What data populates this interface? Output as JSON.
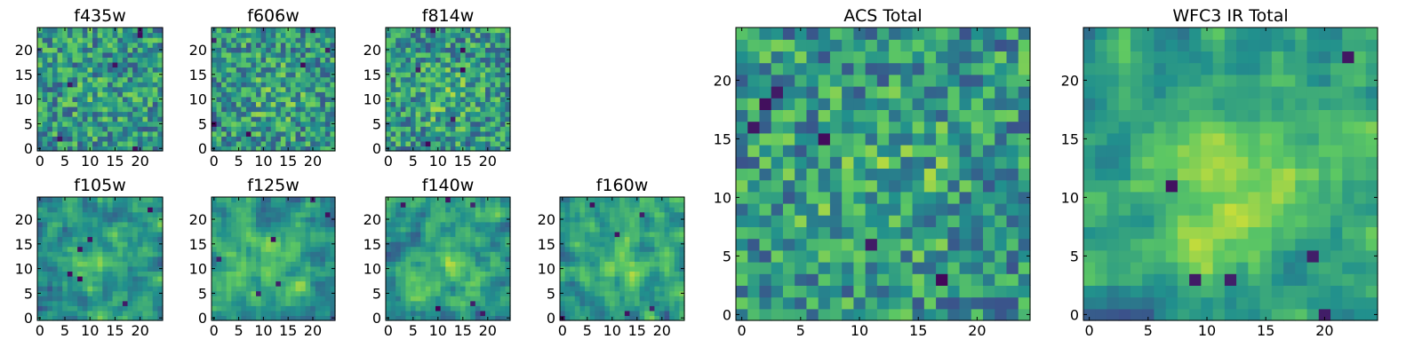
{
  "chart_data": [
    {
      "type": "heatmap",
      "title": "f435w",
      "grid": [
        25,
        25
      ],
      "xlim": [
        0,
        25
      ],
      "ylim": [
        0,
        25
      ],
      "xticks": [
        "0",
        "5",
        "10",
        "15",
        "20"
      ],
      "yticks": [
        "0",
        "5",
        "10",
        "15",
        "20"
      ],
      "colormap": "viridis"
    },
    {
      "type": "heatmap",
      "title": "f606w",
      "grid": [
        25,
        25
      ],
      "xlim": [
        0,
        25
      ],
      "ylim": [
        0,
        25
      ],
      "xticks": [
        "0",
        "5",
        "10",
        "15",
        "20"
      ],
      "yticks": [
        "0",
        "5",
        "10",
        "15",
        "20"
      ],
      "colormap": "viridis"
    },
    {
      "type": "heatmap",
      "title": "f814w",
      "grid": [
        25,
        25
      ],
      "xlim": [
        0,
        25
      ],
      "ylim": [
        0,
        25
      ],
      "xticks": [
        "0",
        "5",
        "10",
        "15",
        "20"
      ],
      "yticks": [
        "0",
        "5",
        "10",
        "15",
        "20"
      ],
      "colormap": "viridis"
    },
    {
      "type": "heatmap",
      "title": "f105w",
      "grid": [
        25,
        25
      ],
      "xlim": [
        0,
        25
      ],
      "ylim": [
        0,
        25
      ],
      "xticks": [
        "0",
        "5",
        "10",
        "15",
        "20"
      ],
      "yticks": [
        "0",
        "5",
        "10",
        "15",
        "20"
      ],
      "colormap": "viridis"
    },
    {
      "type": "heatmap",
      "title": "f125w",
      "grid": [
        25,
        25
      ],
      "xlim": [
        0,
        25
      ],
      "ylim": [
        0,
        25
      ],
      "xticks": [
        "0",
        "5",
        "10",
        "15",
        "20"
      ],
      "yticks": [
        "0",
        "5",
        "10",
        "15",
        "20"
      ],
      "colormap": "viridis"
    },
    {
      "type": "heatmap",
      "title": "f140w",
      "grid": [
        25,
        25
      ],
      "xlim": [
        0,
        25
      ],
      "ylim": [
        0,
        25
      ],
      "xticks": [
        "0",
        "5",
        "10",
        "15",
        "20"
      ],
      "yticks": [
        "0",
        "5",
        "10",
        "15",
        "20"
      ],
      "colormap": "viridis"
    },
    {
      "type": "heatmap",
      "title": "f160w",
      "grid": [
        25,
        25
      ],
      "xlim": [
        0,
        25
      ],
      "ylim": [
        0,
        25
      ],
      "xticks": [
        "0",
        "5",
        "10",
        "15",
        "20"
      ],
      "yticks": [
        "0",
        "5",
        "10",
        "15",
        "20"
      ],
      "colormap": "viridis"
    },
    {
      "type": "heatmap",
      "title": "ACS Total",
      "grid": [
        25,
        25
      ],
      "xlim": [
        0,
        25
      ],
      "ylim": [
        0,
        25
      ],
      "xticks": [
        "0",
        "5",
        "10",
        "15",
        "20"
      ],
      "yticks": [
        "0",
        "5",
        "10",
        "15",
        "20"
      ],
      "colormap": "viridis"
    },
    {
      "type": "heatmap",
      "title": "WFC3 IR Total",
      "grid": [
        25,
        25
      ],
      "xlim": [
        0,
        25
      ],
      "ylim": [
        0,
        25
      ],
      "xticks": [
        "0",
        "5",
        "10",
        "15",
        "20"
      ],
      "yticks": [
        "0",
        "5",
        "10",
        "15",
        "20"
      ],
      "colormap": "viridis"
    }
  ],
  "colors": {
    "viridis": [
      "#440154",
      "#3b528b",
      "#21908d",
      "#5dc863",
      "#fde725"
    ]
  }
}
